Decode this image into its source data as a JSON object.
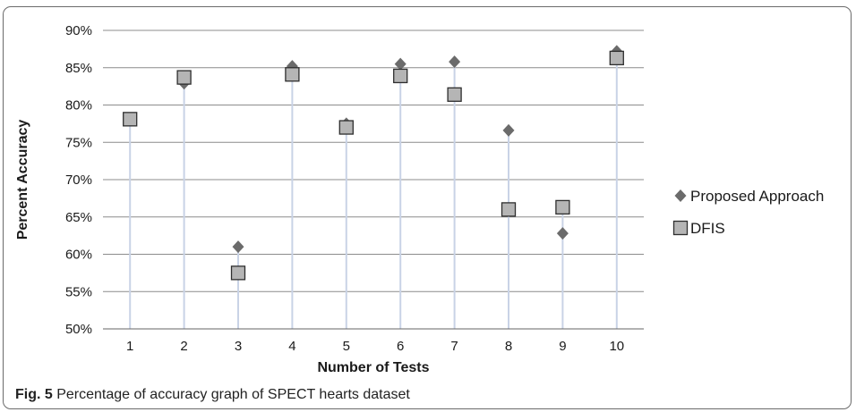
{
  "caption": {
    "label": "Fig. 5",
    "text": "Percentage of accuracy graph of SPECT hearts dataset"
  },
  "chart_data": {
    "type": "scatter",
    "xlabel": "Number of Tests",
    "ylabel": "Percent Accuracy",
    "categories": [
      "1",
      "2",
      "3",
      "4",
      "5",
      "6",
      "7",
      "8",
      "9",
      "10"
    ],
    "ylim": [
      50,
      90
    ],
    "yticks": [
      "50%",
      "55%",
      "60%",
      "65%",
      "70%",
      "75%",
      "80%",
      "85%",
      "90%"
    ],
    "ytick_values": [
      50,
      55,
      60,
      65,
      70,
      75,
      80,
      85,
      90
    ],
    "grid": true,
    "legend_position": "right",
    "series": [
      {
        "name": "Proposed Approach",
        "marker": "diamond",
        "color": "#6b6b6b",
        "values": [
          78.1,
          82.9,
          61.0,
          85.2,
          77.5,
          85.5,
          85.8,
          76.6,
          62.8,
          87.2
        ]
      },
      {
        "name": "DFIS",
        "marker": "square",
        "color": "#b5b5b5",
        "values": [
          78.1,
          83.7,
          57.5,
          84.1,
          77.0,
          83.9,
          81.4,
          66.0,
          66.3,
          86.3
        ]
      }
    ]
  }
}
